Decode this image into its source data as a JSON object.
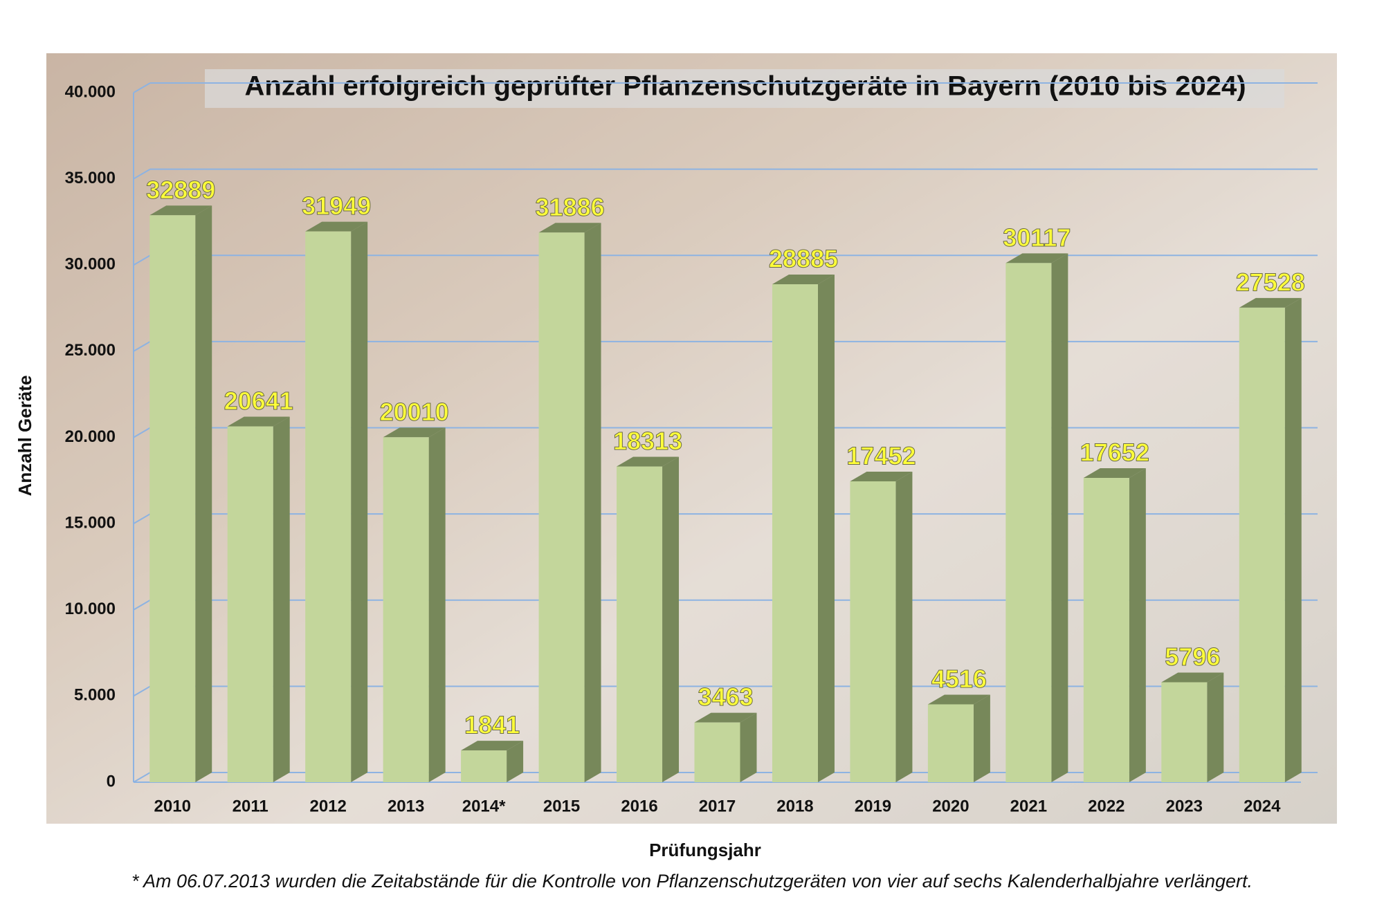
{
  "chart_data": {
    "type": "bar3d",
    "title": "Anzahl erfolgreich geprüfter Pflanzenschutzgeräte in Bayern (2010 bis 2024)",
    "x_label": "Prüfungsjahr",
    "y_label": "Anzahl Geräte",
    "footnote": "* Am 06.07.2013 wurden die Zeitabstände für die Kontrolle von Pflanzenschutzgeräten von vier auf sechs Kalenderhalbjahre verlängert.",
    "categories": [
      "2010",
      "2011",
      "2012",
      "2013",
      "2014*",
      "2015",
      "2016",
      "2017",
      "2018",
      "2019",
      "2020",
      "2021",
      "2022",
      "2023",
      "2024"
    ],
    "values": [
      32889,
      20641,
      31949,
      20010,
      1841,
      31886,
      18313,
      3463,
      28885,
      17452,
      4516,
      30117,
      17652,
      5796,
      27528
    ],
    "color": "#c3d69b",
    "side_color": "#77885a",
    "label_color": "#ffff3a",
    "ylim": [
      0,
      40000
    ],
    "yticks": [
      0,
      {
        "value": 5000,
        "label": "5.000"
      },
      {
        "value": 10000,
        "label": "10.000"
      },
      {
        "value": 15000,
        "label": "15.000"
      },
      {
        "value": 20000,
        "label": "20.000"
      },
      {
        "value": 25000,
        "label": "25.000"
      },
      {
        "value": 30000,
        "label": "30.000"
      },
      {
        "value": 35000,
        "label": "35.000"
      },
      {
        "value": 40000,
        "label": "40.000"
      }
    ],
    "grid": true
  }
}
